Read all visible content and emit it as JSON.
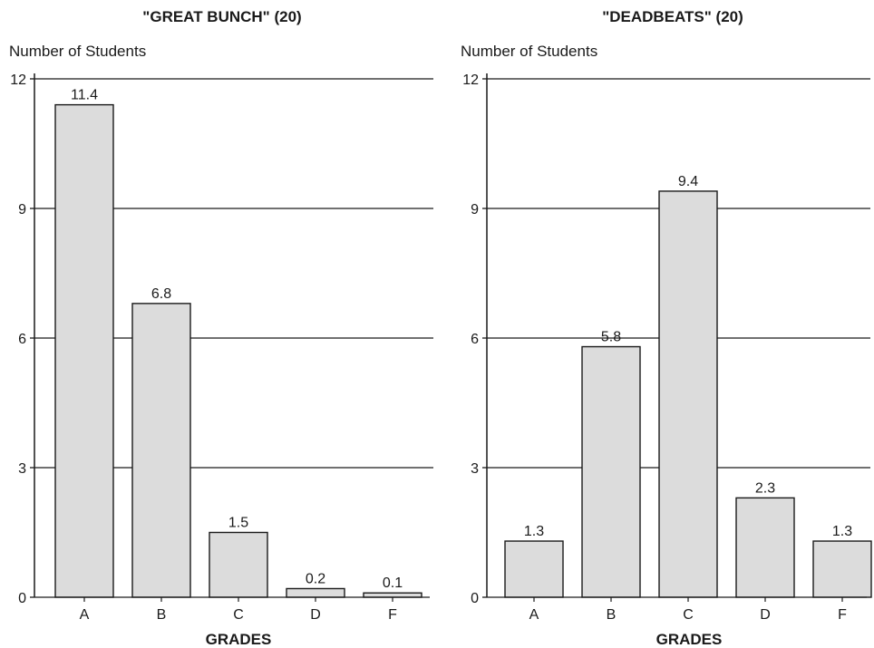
{
  "chart_data": [
    {
      "type": "bar",
      "title": "\"GREAT BUNCH\" (20)",
      "ylabel": "Number of Students",
      "xlabel": "GRADES",
      "categories": [
        "A",
        "B",
        "C",
        "D",
        "F"
      ],
      "values": [
        11.4,
        6.8,
        1.5,
        0.2,
        0.1
      ],
      "data_labels": [
        "11.4",
        "6.8",
        "1.5",
        "0.2",
        "0.1"
      ],
      "yticks": [
        "0",
        "3",
        "6",
        "9",
        "12"
      ],
      "ylim": [
        0,
        12
      ],
      "grid": true,
      "bar_color": "#dcdcdc",
      "edge_color": "#1a1a1a"
    },
    {
      "type": "bar",
      "title": "\"DEADBEATS\" (20)",
      "ylabel": "Number of Students",
      "xlabel": "GRADES",
      "categories": [
        "A",
        "B",
        "C",
        "D",
        "F"
      ],
      "values": [
        1.3,
        5.8,
        9.4,
        2.3,
        1.3
      ],
      "data_labels": [
        "1.3",
        "5.8",
        "9.4",
        "2.3",
        "1.3"
      ],
      "yticks": [
        "0",
        "3",
        "6",
        "9",
        "12"
      ],
      "ylim": [
        0,
        12
      ],
      "grid": true,
      "bar_color": "#dcdcdc",
      "edge_color": "#1a1a1a"
    }
  ]
}
